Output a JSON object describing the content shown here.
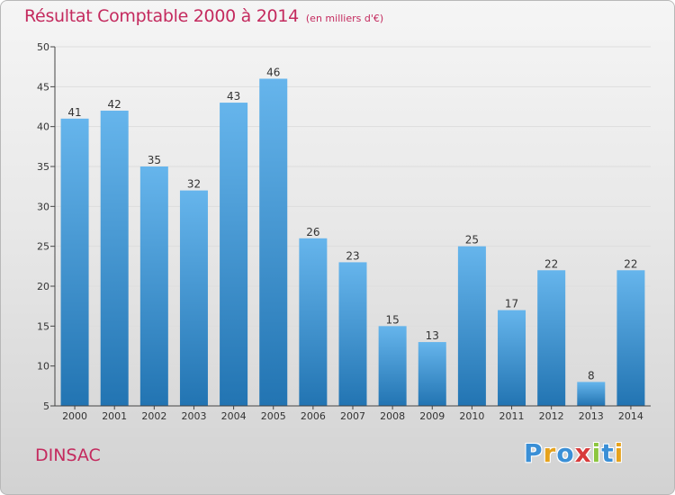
{
  "header": {
    "title": "Résultat Comptable 2000 à 2014",
    "subtitle": "(en milliers d'€)"
  },
  "footer": {
    "town": "DINSAC",
    "logo": {
      "letters": [
        "P",
        "r",
        "o",
        "x",
        "i",
        "t",
        "i"
      ],
      "colors": [
        "#3a8fd6",
        "#e6a21c",
        "#3a8fd6",
        "#d83a3a",
        "#8cc63f",
        "#3a8fd6",
        "#e6a21c"
      ]
    }
  },
  "colors": {
    "bar_light": "#66b5ec",
    "bar_dark": "#2274b2",
    "axis": "#444444",
    "grid": "#dddddd",
    "accent": "#c42a5e"
  },
  "chart_data": {
    "type": "bar",
    "title": "Résultat Comptable 2000 à 2014",
    "subtitle": "(en milliers d'€)",
    "xlabel": "",
    "ylabel": "",
    "categories": [
      "2000",
      "2001",
      "2002",
      "2003",
      "2004",
      "2005",
      "2006",
      "2007",
      "2008",
      "2009",
      "2010",
      "2011",
      "2012",
      "2013",
      "2014"
    ],
    "values": [
      41,
      42,
      35,
      32,
      43,
      46,
      26,
      23,
      15,
      13,
      25,
      17,
      22,
      8,
      22
    ],
    "data_labels": [
      "41",
      "42",
      "35",
      "32",
      "43",
      "46",
      "26",
      "23",
      "15",
      "13",
      "25",
      "17",
      "22",
      "8",
      "22"
    ],
    "ylim": [
      5,
      50
    ],
    "yticks": [
      5,
      10,
      15,
      20,
      25,
      30,
      35,
      40,
      45,
      50
    ],
    "grid": true
  }
}
